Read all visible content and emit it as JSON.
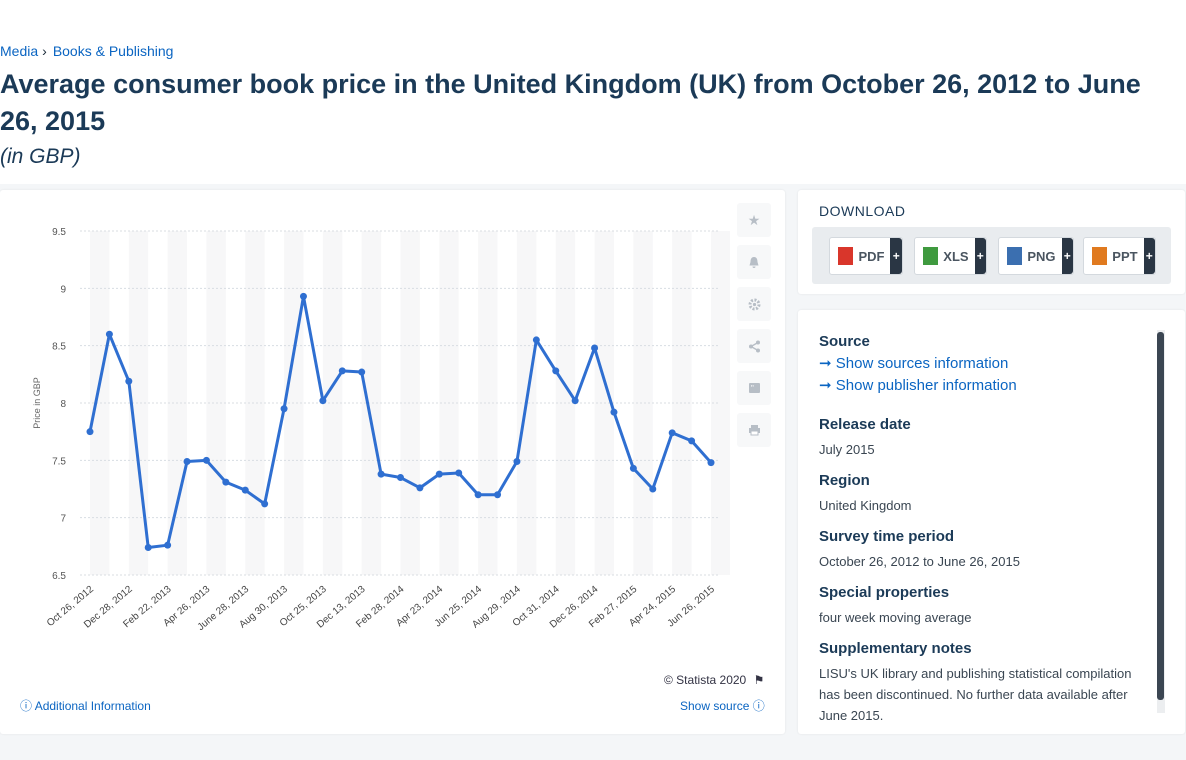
{
  "breadcrumb": {
    "items": [
      "Media",
      "Books & Publishing"
    ]
  },
  "title": "Average consumer book price in the United Kingdom (UK) from October 26, 2012 to June 26, 2015",
  "subtitle": "(in GBP)",
  "toolbar": {
    "icons": [
      "star-icon",
      "bell-icon",
      "gear-icon",
      "share-icon",
      "quote-icon",
      "print-icon"
    ]
  },
  "chart_data": {
    "type": "line",
    "ylabel": "Price in GBP",
    "xlabel": "",
    "ylim": [
      6.5,
      9.5
    ],
    "yticks": [
      6.5,
      7,
      7.5,
      8,
      8.5,
      9,
      9.5
    ],
    "grid": true,
    "xtick_labels": [
      "Oct 26, 2012",
      "Dec 28, 2012",
      "Feb 22, 2013",
      "Apr 26, 2013",
      "June 28, 2013",
      "Aug 30, 2013",
      "Oct 25, 2013",
      "Dec 13, 2013",
      "Feb 28, 2014",
      "Apr 23, 2014",
      "Jun 25, 2014",
      "Aug 29, 2014",
      "Oct 31, 2014",
      "Dec 26, 2014",
      "Feb 27, 2015",
      "Apr 24, 2015",
      "Jun 26, 2015"
    ],
    "series": [
      {
        "color": "#2f6fd1",
        "values": [
          7.75,
          8.6,
          8.19,
          6.74,
          6.76,
          7.49,
          7.5,
          7.31,
          7.24,
          7.12,
          7.95,
          8.93,
          8.02,
          8.28,
          8.27,
          7.38,
          7.35,
          7.26,
          7.38,
          7.39,
          7.2,
          7.2,
          7.49,
          8.55,
          8.28,
          8.02,
          8.48,
          7.92,
          7.43,
          7.25,
          7.74,
          7.67,
          7.48
        ]
      }
    ]
  },
  "footer": {
    "additional_info": "Additional Information",
    "copyright": "© Statista 2020",
    "show_source": "Show source"
  },
  "download": {
    "title": "DOWNLOAD",
    "buttons": [
      {
        "label": "PDF",
        "color": "#d9362b"
      },
      {
        "label": "XLS",
        "color": "#3f9a3f"
      },
      {
        "label": "PNG",
        "color": "#3b6fb0"
      },
      {
        "label": "PPT",
        "color": "#e07a1f"
      }
    ],
    "plus": "+"
  },
  "info": {
    "source_heading": "Source",
    "show_sources": "Show sources information",
    "show_publisher": "Show publisher information",
    "release_heading": "Release date",
    "release_value": "July 2015",
    "region_heading": "Region",
    "region_value": "United Kingdom",
    "survey_heading": "Survey time period",
    "survey_value": "October 26, 2012 to June 26, 2015",
    "special_heading": "Special properties",
    "special_value": "four week moving average",
    "supp_heading": "Supplementary notes",
    "supp_value": "LISU's UK library and publishing statistical compilation has been discontinued. No further data available after June 2015."
  }
}
